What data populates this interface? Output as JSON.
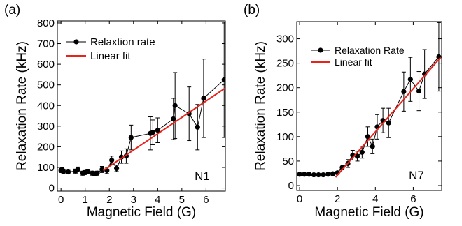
{
  "figure": {
    "colors": {
      "data": "#000000",
      "fit": "#e8231b",
      "axis": "#000000"
    }
  },
  "chart_data": [
    {
      "type": "line",
      "panel_label": "(a)",
      "annotation": "N1",
      "xlabel": "Magnetic Field (G)",
      "ylabel": "Relaxation Rate (kHz)",
      "xlim": [
        -0.15,
        6.8
      ],
      "ylim": [
        -15,
        810
      ],
      "x_ticks": [
        0,
        1,
        2,
        3,
        4,
        5,
        6
      ],
      "y_ticks": [
        0,
        100,
        200,
        300,
        400,
        500,
        600,
        700,
        800
      ],
      "legend_position": "top-left",
      "series": [
        {
          "name": "Relaxtion rate",
          "kind": "data",
          "x": [
            0.0,
            0.05,
            0.1,
            0.3,
            0.6,
            0.7,
            0.9,
            1.0,
            1.1,
            1.3,
            1.4,
            1.5,
            1.7,
            1.9,
            2.1,
            2.3,
            2.5,
            2.7,
            2.9,
            3.7,
            3.8,
            4.0,
            4.65,
            4.72,
            5.3,
            5.65,
            5.9,
            6.75
          ],
          "y": [
            85,
            90,
            80,
            78,
            82,
            90,
            72,
            75,
            80,
            72,
            70,
            72,
            90,
            85,
            135,
            95,
            150,
            155,
            245,
            265,
            270,
            280,
            335,
            400,
            360,
            295,
            435,
            525
          ],
          "err": [
            10,
            10,
            8,
            8,
            10,
            12,
            10,
            10,
            10,
            10,
            10,
            10,
            15,
            15,
            20,
            15,
            30,
            35,
            60,
            80,
            60,
            60,
            100,
            160,
            130,
            110,
            190,
            280
          ]
        },
        {
          "name": "Linear fit",
          "kind": "fit",
          "x": [
            1.75,
            6.8
          ],
          "y": [
            85,
            485
          ]
        }
      ]
    },
    {
      "type": "line",
      "panel_label": "(b)",
      "annotation": "N7",
      "xlabel": "Magnetic Field (G)",
      "ylabel": "Relaxation Rate (kHz)",
      "xlim": [
        -0.15,
        7.5
      ],
      "ylim": [
        -10,
        335
      ],
      "x_ticks": [
        0,
        2,
        4,
        6
      ],
      "y_ticks": [
        0,
        50,
        100,
        150,
        200,
        250,
        300
      ],
      "legend_position": "top-left",
      "series": [
        {
          "name": "Relaxation Rate",
          "kind": "data",
          "x": [
            0.0,
            0.25,
            0.5,
            0.75,
            1.0,
            1.25,
            1.5,
            1.75,
            2.0,
            2.25,
            2.55,
            2.8,
            3.05,
            3.3,
            3.6,
            3.85,
            4.1,
            4.4,
            4.7,
            5.5,
            5.85,
            6.3,
            6.6,
            7.35
          ],
          "y": [
            23,
            23,
            23,
            22,
            22,
            22,
            23,
            24,
            26,
            37,
            45,
            62,
            60,
            68,
            100,
            80,
            120,
            133,
            128,
            192,
            217,
            193,
            228,
            263
          ],
          "err": [
            2,
            2,
            2,
            2,
            2,
            2,
            2,
            3,
            3,
            5,
            8,
            10,
            10,
            12,
            20,
            15,
            25,
            25,
            30,
            40,
            45,
            40,
            50,
            70
          ]
        },
        {
          "name": "Linear fit",
          "kind": "fit",
          "x": [
            1.9,
            7.45
          ],
          "y": [
            17,
            262
          ]
        }
      ]
    }
  ]
}
